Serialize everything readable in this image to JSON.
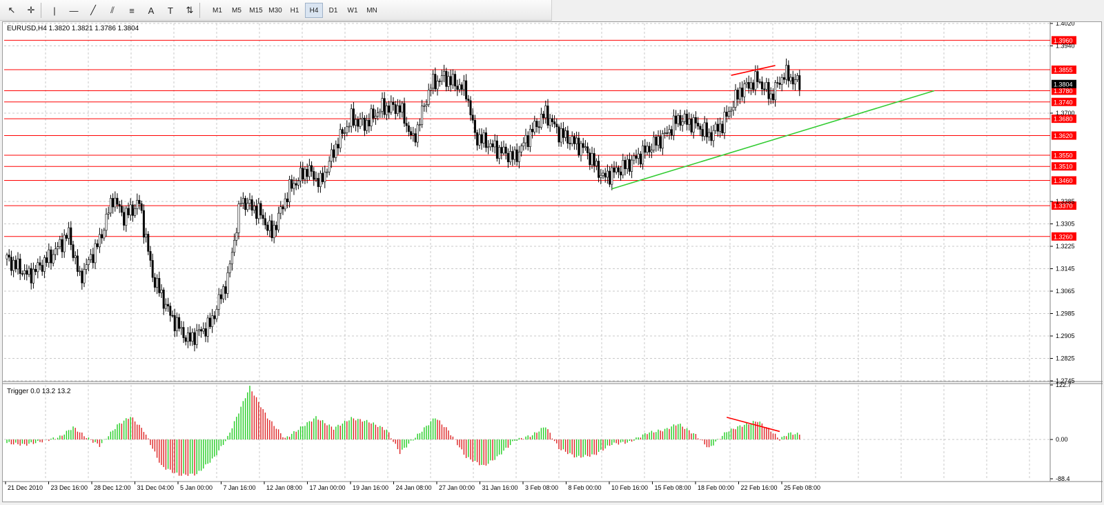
{
  "toolbar": {
    "tools": [
      {
        "name": "cursor-arrow-icon",
        "glyph": "↖"
      },
      {
        "name": "crosshair-icon",
        "glyph": "✛"
      },
      {
        "name": "vertical-line-icon",
        "glyph": "|"
      },
      {
        "name": "horizontal-line-icon",
        "glyph": "—"
      },
      {
        "name": "trendline-icon",
        "glyph": "╱"
      },
      {
        "name": "equidistant-channel-icon",
        "glyph": "⫽"
      },
      {
        "name": "fibonacci-retracement-icon",
        "glyph": "≡"
      },
      {
        "name": "text-icon",
        "glyph": "A"
      },
      {
        "name": "text-label-icon",
        "glyph": "T"
      },
      {
        "name": "arrows-icon",
        "glyph": "⇅"
      }
    ],
    "timeframes": [
      "M1",
      "M5",
      "M15",
      "M30",
      "H1",
      "H4",
      "D1",
      "W1",
      "MN"
    ],
    "active_timeframe": "H4"
  },
  "main_legend": "EURUSD,H4  1.3820 1.3821 1.3786 1.3804",
  "indicator_legend": "Trigger 0.0 13.2 13.2",
  "price_axis": {
    "min": 1.2745,
    "max": 1.402,
    "ticks": [
      "1.4020",
      "1.3940",
      "1.3700",
      "1.3385",
      "1.3305",
      "1.3225",
      "1.3145",
      "1.3065",
      "1.2985",
      "1.2905",
      "1.2825",
      "1.2745"
    ]
  },
  "indicator_axis": {
    "min": -88.4,
    "max": 122.7,
    "ticks": [
      "122.7",
      "0.00",
      "-88.4"
    ]
  },
  "current_price": "1.3804",
  "levels": [
    "1.3960",
    "1.3855",
    "1.3780",
    "1.3740",
    "1.3680",
    "1.3620",
    "1.3550",
    "1.3510",
    "1.3460",
    "1.3370",
    "1.3260"
  ],
  "time_axis": [
    "21 Dec 2010",
    "23 Dec 16:00",
    "28 Dec 12:00",
    "31 Dec 04:00",
    "5 Jan 00:00",
    "7 Jan 16:00",
    "12 Jan 08:00",
    "17 Jan 00:00",
    "19 Jan 16:00",
    "24 Jan 08:00",
    "27 Jan 00:00",
    "31 Jan 16:00",
    "3 Feb 08:00",
    "8 Feb 00:00",
    "10 Feb 16:00",
    "15 Feb 08:00",
    "18 Feb 00:00",
    "22 Feb 16:00",
    "25 Feb 08:00"
  ],
  "colors": {
    "level_line": "#ff0000",
    "trend_line": "#33cc33",
    "hist_up": "#22cc22",
    "hist_down": "#dd2222",
    "candle": "#000000",
    "grid": "#c8c8c8",
    "current_tag": "#000000"
  },
  "chart_data": {
    "type": "line",
    "symbol": "EURUSD",
    "timeframe": "H4",
    "x_start": "21 Dec 2010",
    "x_end": "25 Feb 08:00",
    "close_path": [
      [
        0,
        1.318
      ],
      [
        10,
        1.312
      ],
      [
        20,
        1.319
      ],
      [
        28,
        1.327
      ],
      [
        33,
        1.311
      ],
      [
        42,
        1.3245
      ],
      [
        48,
        1.34
      ],
      [
        53,
        1.333
      ],
      [
        60,
        1.338
      ],
      [
        66,
        1.312
      ],
      [
        74,
        1.298
      ],
      [
        82,
        1.289
      ],
      [
        92,
        1.2945
      ],
      [
        100,
        1.311
      ],
      [
        106,
        1.339
      ],
      [
        114,
        1.335
      ],
      [
        120,
        1.327
      ],
      [
        128,
        1.343
      ],
      [
        136,
        1.35
      ],
      [
        142,
        1.345
      ],
      [
        150,
        1.36
      ],
      [
        156,
        1.368
      ],
      [
        162,
        1.366
      ],
      [
        170,
        1.372
      ],
      [
        178,
        1.372
      ],
      [
        184,
        1.36
      ],
      [
        192,
        1.38
      ],
      [
        198,
        1.383
      ],
      [
        208,
        1.378
      ],
      [
        212,
        1.362
      ],
      [
        220,
        1.358
      ],
      [
        230,
        1.354
      ],
      [
        238,
        1.364
      ],
      [
        244,
        1.37
      ],
      [
        250,
        1.363
      ],
      [
        262,
        1.357
      ],
      [
        270,
        1.347
      ],
      [
        280,
        1.351
      ],
      [
        290,
        1.357
      ],
      [
        298,
        1.362
      ],
      [
        304,
        1.368
      ],
      [
        312,
        1.366
      ],
      [
        318,
        1.362
      ],
      [
        324,
        1.366
      ],
      [
        332,
        1.378
      ],
      [
        340,
        1.382
      ],
      [
        346,
        1.376
      ],
      [
        352,
        1.384
      ],
      [
        356,
        1.382
      ],
      [
        359,
        1.3804
      ]
    ],
    "histogram": [
      [
        0,
        -8
      ],
      [
        8,
        -12
      ],
      [
        16,
        -4
      ],
      [
        24,
        6
      ],
      [
        30,
        28
      ],
      [
        36,
        5
      ],
      [
        42,
        -14
      ],
      [
        50,
        32
      ],
      [
        56,
        52
      ],
      [
        62,
        20
      ],
      [
        70,
        -60
      ],
      [
        78,
        -80
      ],
      [
        86,
        -78
      ],
      [
        94,
        -40
      ],
      [
        100,
        5
      ],
      [
        110,
        118
      ],
      [
        118,
        50
      ],
      [
        126,
        2
      ],
      [
        134,
        30
      ],
      [
        140,
        50
      ],
      [
        148,
        25
      ],
      [
        156,
        48
      ],
      [
        164,
        40
      ],
      [
        172,
        22
      ],
      [
        178,
        -30
      ],
      [
        186,
        10
      ],
      [
        194,
        50
      ],
      [
        200,
        20
      ],
      [
        208,
        -40
      ],
      [
        216,
        -60
      ],
      [
        222,
        -40
      ],
      [
        230,
        -2
      ],
      [
        238,
        10
      ],
      [
        244,
        30
      ],
      [
        250,
        -20
      ],
      [
        258,
        -40
      ],
      [
        266,
        -35
      ],
      [
        274,
        -10
      ],
      [
        282,
        -6
      ],
      [
        290,
        15
      ],
      [
        298,
        22
      ],
      [
        304,
        36
      ],
      [
        312,
        10
      ],
      [
        318,
        -20
      ],
      [
        326,
        18
      ],
      [
        332,
        30
      ],
      [
        340,
        42
      ],
      [
        346,
        20
      ],
      [
        350,
        0
      ],
      [
        354,
        14
      ],
      [
        359,
        12
      ]
    ],
    "annotations": {
      "support_trendline": [
        [
          274,
          1.343
        ],
        [
          420,
          1.378
        ]
      ],
      "price_high_line": [
        [
          328,
          1.3835
        ],
        [
          348,
          1.387
        ]
      ],
      "indicator_divergence_line": [
        [
          326,
          50
        ],
        [
          350,
          18
        ]
      ]
    }
  }
}
